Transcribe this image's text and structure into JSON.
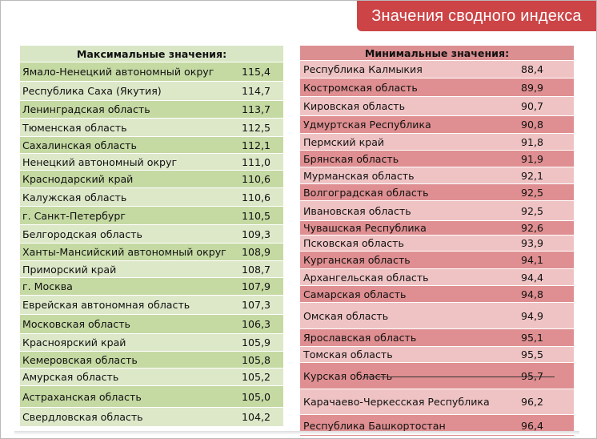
{
  "title": "Значения сводного индекса",
  "max": {
    "header": "Максимальные значения:",
    "rows": [
      {
        "name": "Ямало-Ненецкий автономный округ",
        "value": "115,4"
      },
      {
        "name": "Республика Саха (Якутия)",
        "value": "114,7"
      },
      {
        "name": "Ленинградская область",
        "value": "113,7"
      },
      {
        "name": "Тюменская область",
        "value": "112,5"
      },
      {
        "name": "Сахалинская область",
        "value": "112,1"
      },
      {
        "name": "Ненецкий автономный округ",
        "value": "111,0"
      },
      {
        "name": "Краснодарский край",
        "value": "110,6"
      },
      {
        "name": "Калужская область",
        "value": "110,6"
      },
      {
        "name": "г. Санкт-Петербург",
        "value": "110,5"
      },
      {
        "name": "Белгородская область",
        "value": "109,3"
      },
      {
        "name": "Ханты-Мансийский автономный округ",
        "value": "108,9"
      },
      {
        "name": "Приморский край",
        "value": "108,7"
      },
      {
        "name": "г. Москва",
        "value": "107,9"
      },
      {
        "name": "Еврейская автономная область",
        "value": "107,3"
      },
      {
        "name": "Московская область",
        "value": "106,3"
      },
      {
        "name": "Красноярский край",
        "value": "105,9"
      },
      {
        "name": "Кемеровская область",
        "value": "105,8"
      },
      {
        "name": "Амурская область",
        "value": "105,2"
      },
      {
        "name": "Астраханская область",
        "value": "105,0"
      },
      {
        "name": "Свердловская область",
        "value": "104,2"
      }
    ]
  },
  "min": {
    "header": "Минимальные значения:",
    "rows": [
      {
        "name": "Республика Калмыкия",
        "value": "88,4"
      },
      {
        "name": "Костромская область",
        "value": "89,9"
      },
      {
        "name": "Кировская область",
        "value": "90,7"
      },
      {
        "name": "Удмуртская Республика",
        "value": "90,8"
      },
      {
        "name": "Пермский край",
        "value": "91,8"
      },
      {
        "name": "Брянская область",
        "value": "91,9"
      },
      {
        "name": "Мурманская область",
        "value": "92,1"
      },
      {
        "name": "Волгоградская область",
        "value": "92,5"
      },
      {
        "name": "Ивановская область",
        "value": "92,5"
      },
      {
        "name": "Чувашская Республика",
        "value": "92,6"
      },
      {
        "name": "Псковская область",
        "value": "93,9"
      },
      {
        "name": "Курганская область",
        "value": "94,1"
      },
      {
        "name": "Архангельская область",
        "value": "94,4"
      },
      {
        "name": "Самарская область",
        "value": "94,8"
      },
      {
        "name": "Омская область",
        "value": "94,9"
      },
      {
        "name": "Ярославская область",
        "value": "95,1"
      },
      {
        "name": "Томская область",
        "value": "95,5"
      },
      {
        "name": "Курская область",
        "value": "95,7"
      },
      {
        "name": "Карачаево-Черкесская Республика",
        "value": "96,2"
      },
      {
        "name": "Республика Башкортостан",
        "value": "96,4"
      }
    ]
  }
}
